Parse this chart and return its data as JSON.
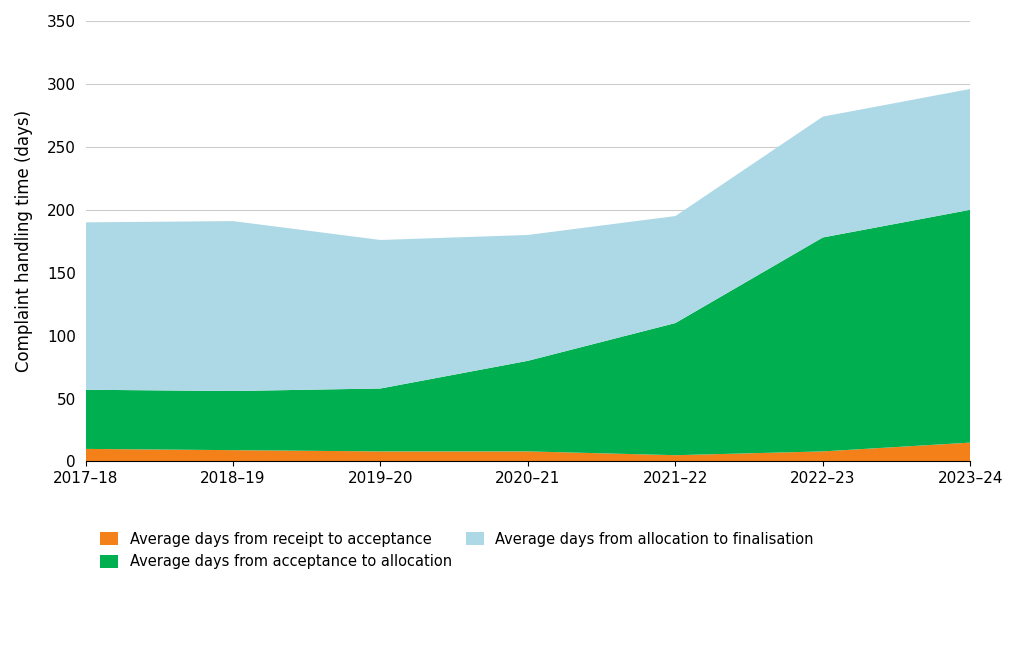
{
  "x_labels": [
    "2017–18",
    "2018–19",
    "2019–20",
    "2020–21",
    "2021–22",
    "2022–23",
    "2023–24"
  ],
  "receipt_to_acceptance": [
    10,
    9,
    8,
    8,
    5,
    8,
    15
  ],
  "acceptance_to_allocation": [
    47,
    47,
    50,
    72,
    105,
    170,
    185
  ],
  "allocation_to_finalisation": [
    133,
    135,
    118,
    100,
    85,
    96,
    96
  ],
  "color_receipt": "#f4801a",
  "color_acceptance": "#00b050",
  "color_allocation": "#add8e6",
  "ylabel": "Complaint handling time (days)",
  "ylim": [
    0,
    350
  ],
  "yticks": [
    0,
    50,
    100,
    150,
    200,
    250,
    300,
    350
  ],
  "legend": [
    "Average days from receipt to acceptance",
    "Average days from acceptance to allocation",
    "Average days from allocation to finalisation"
  ],
  "grid_color": "#cccccc",
  "background_color": "#ffffff"
}
